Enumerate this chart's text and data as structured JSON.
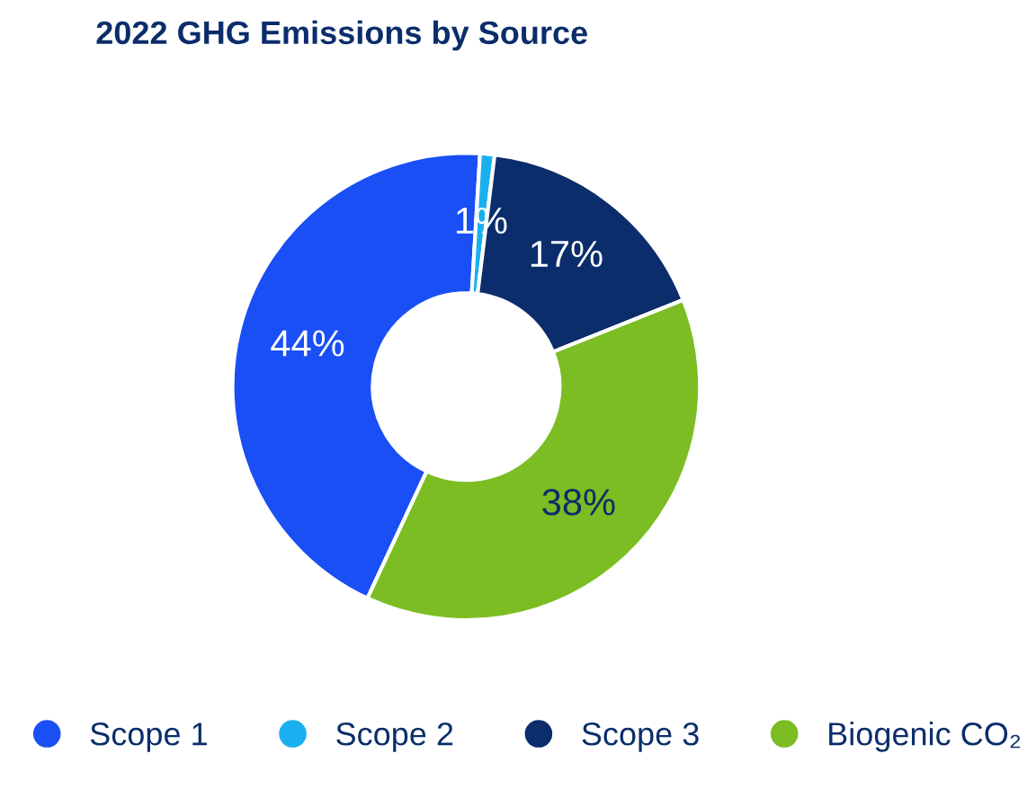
{
  "chart_data": {
    "type": "donut",
    "title": "2022 GHG Emissions by Source",
    "categories": [
      "Scope 1",
      "Scope 2",
      "Scope 3",
      "Biogenic CO₂"
    ],
    "values": [
      44,
      1,
      17,
      38
    ],
    "colors": [
      "#1a4ff5",
      "#1ab0f0",
      "#0b2d6b",
      "#7bbd22"
    ],
    "value_labels": [
      "44%",
      "1%",
      "17%",
      "38%"
    ],
    "legend": "bottom"
  }
}
